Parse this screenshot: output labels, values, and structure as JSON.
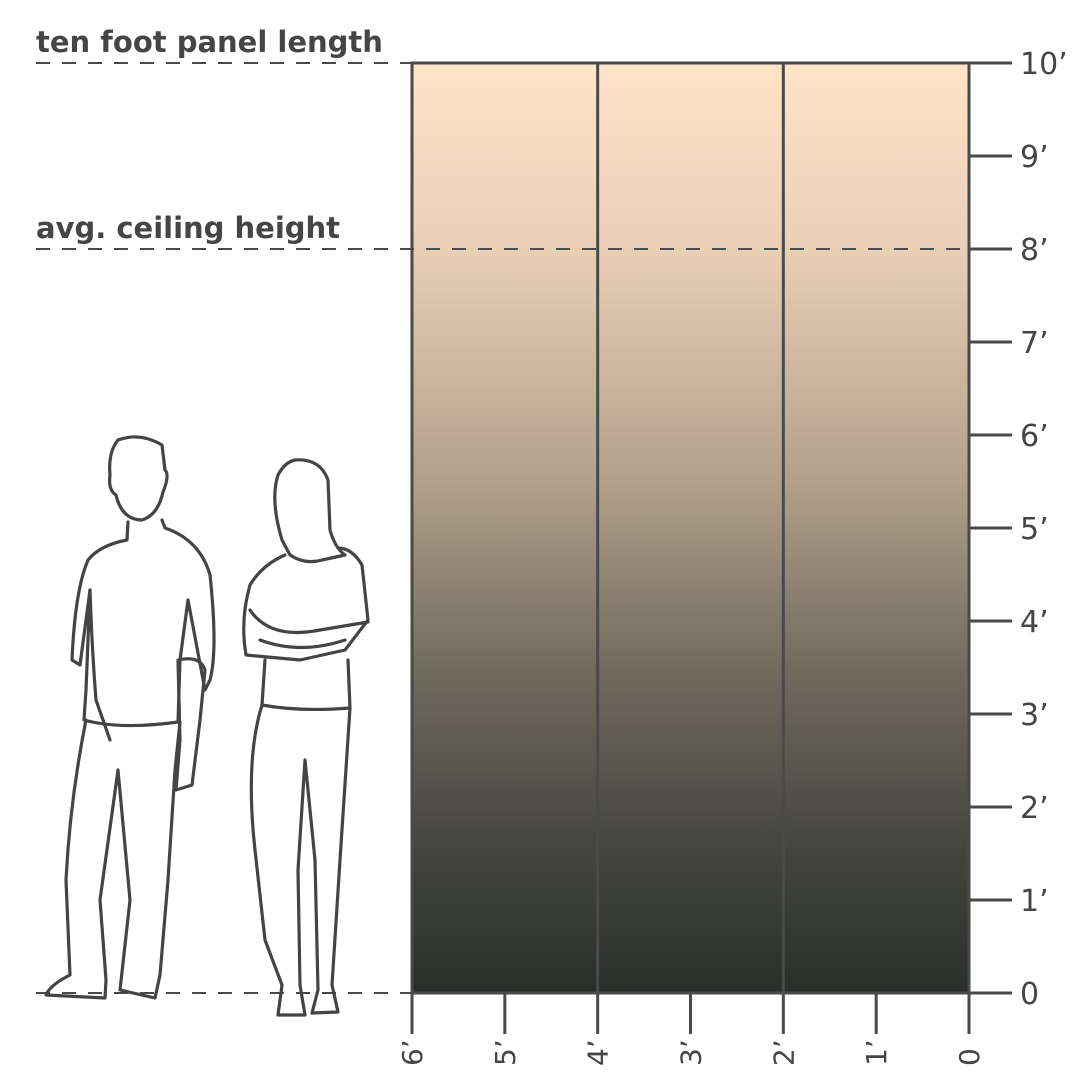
{
  "annotations": {
    "panel_length": "ten foot panel length",
    "ceiling_height": "avg. ceiling height"
  },
  "panel": {
    "height_ft": 10,
    "width_ft": 6,
    "sections": 3,
    "gradient_top": "#ffe4c7",
    "gradient_bottom": "#2a2e2b",
    "line_color": "#4a4a4a"
  },
  "reference_lines_ft": [
    10,
    8,
    0
  ],
  "right_axis": {
    "min": 0,
    "max": 10,
    "tick_labels": [
      "0",
      "1’",
      "2’",
      "3’",
      "4’",
      "5’",
      "6’",
      "7’",
      "8’",
      "9’",
      "10’"
    ]
  },
  "bottom_axis": {
    "min": 0,
    "max": 6,
    "tick_labels": [
      "6’",
      "5’",
      "4’",
      "3’",
      "2’",
      "1’",
      "0"
    ]
  },
  "figures": [
    "man-figure",
    "woman-figure"
  ]
}
